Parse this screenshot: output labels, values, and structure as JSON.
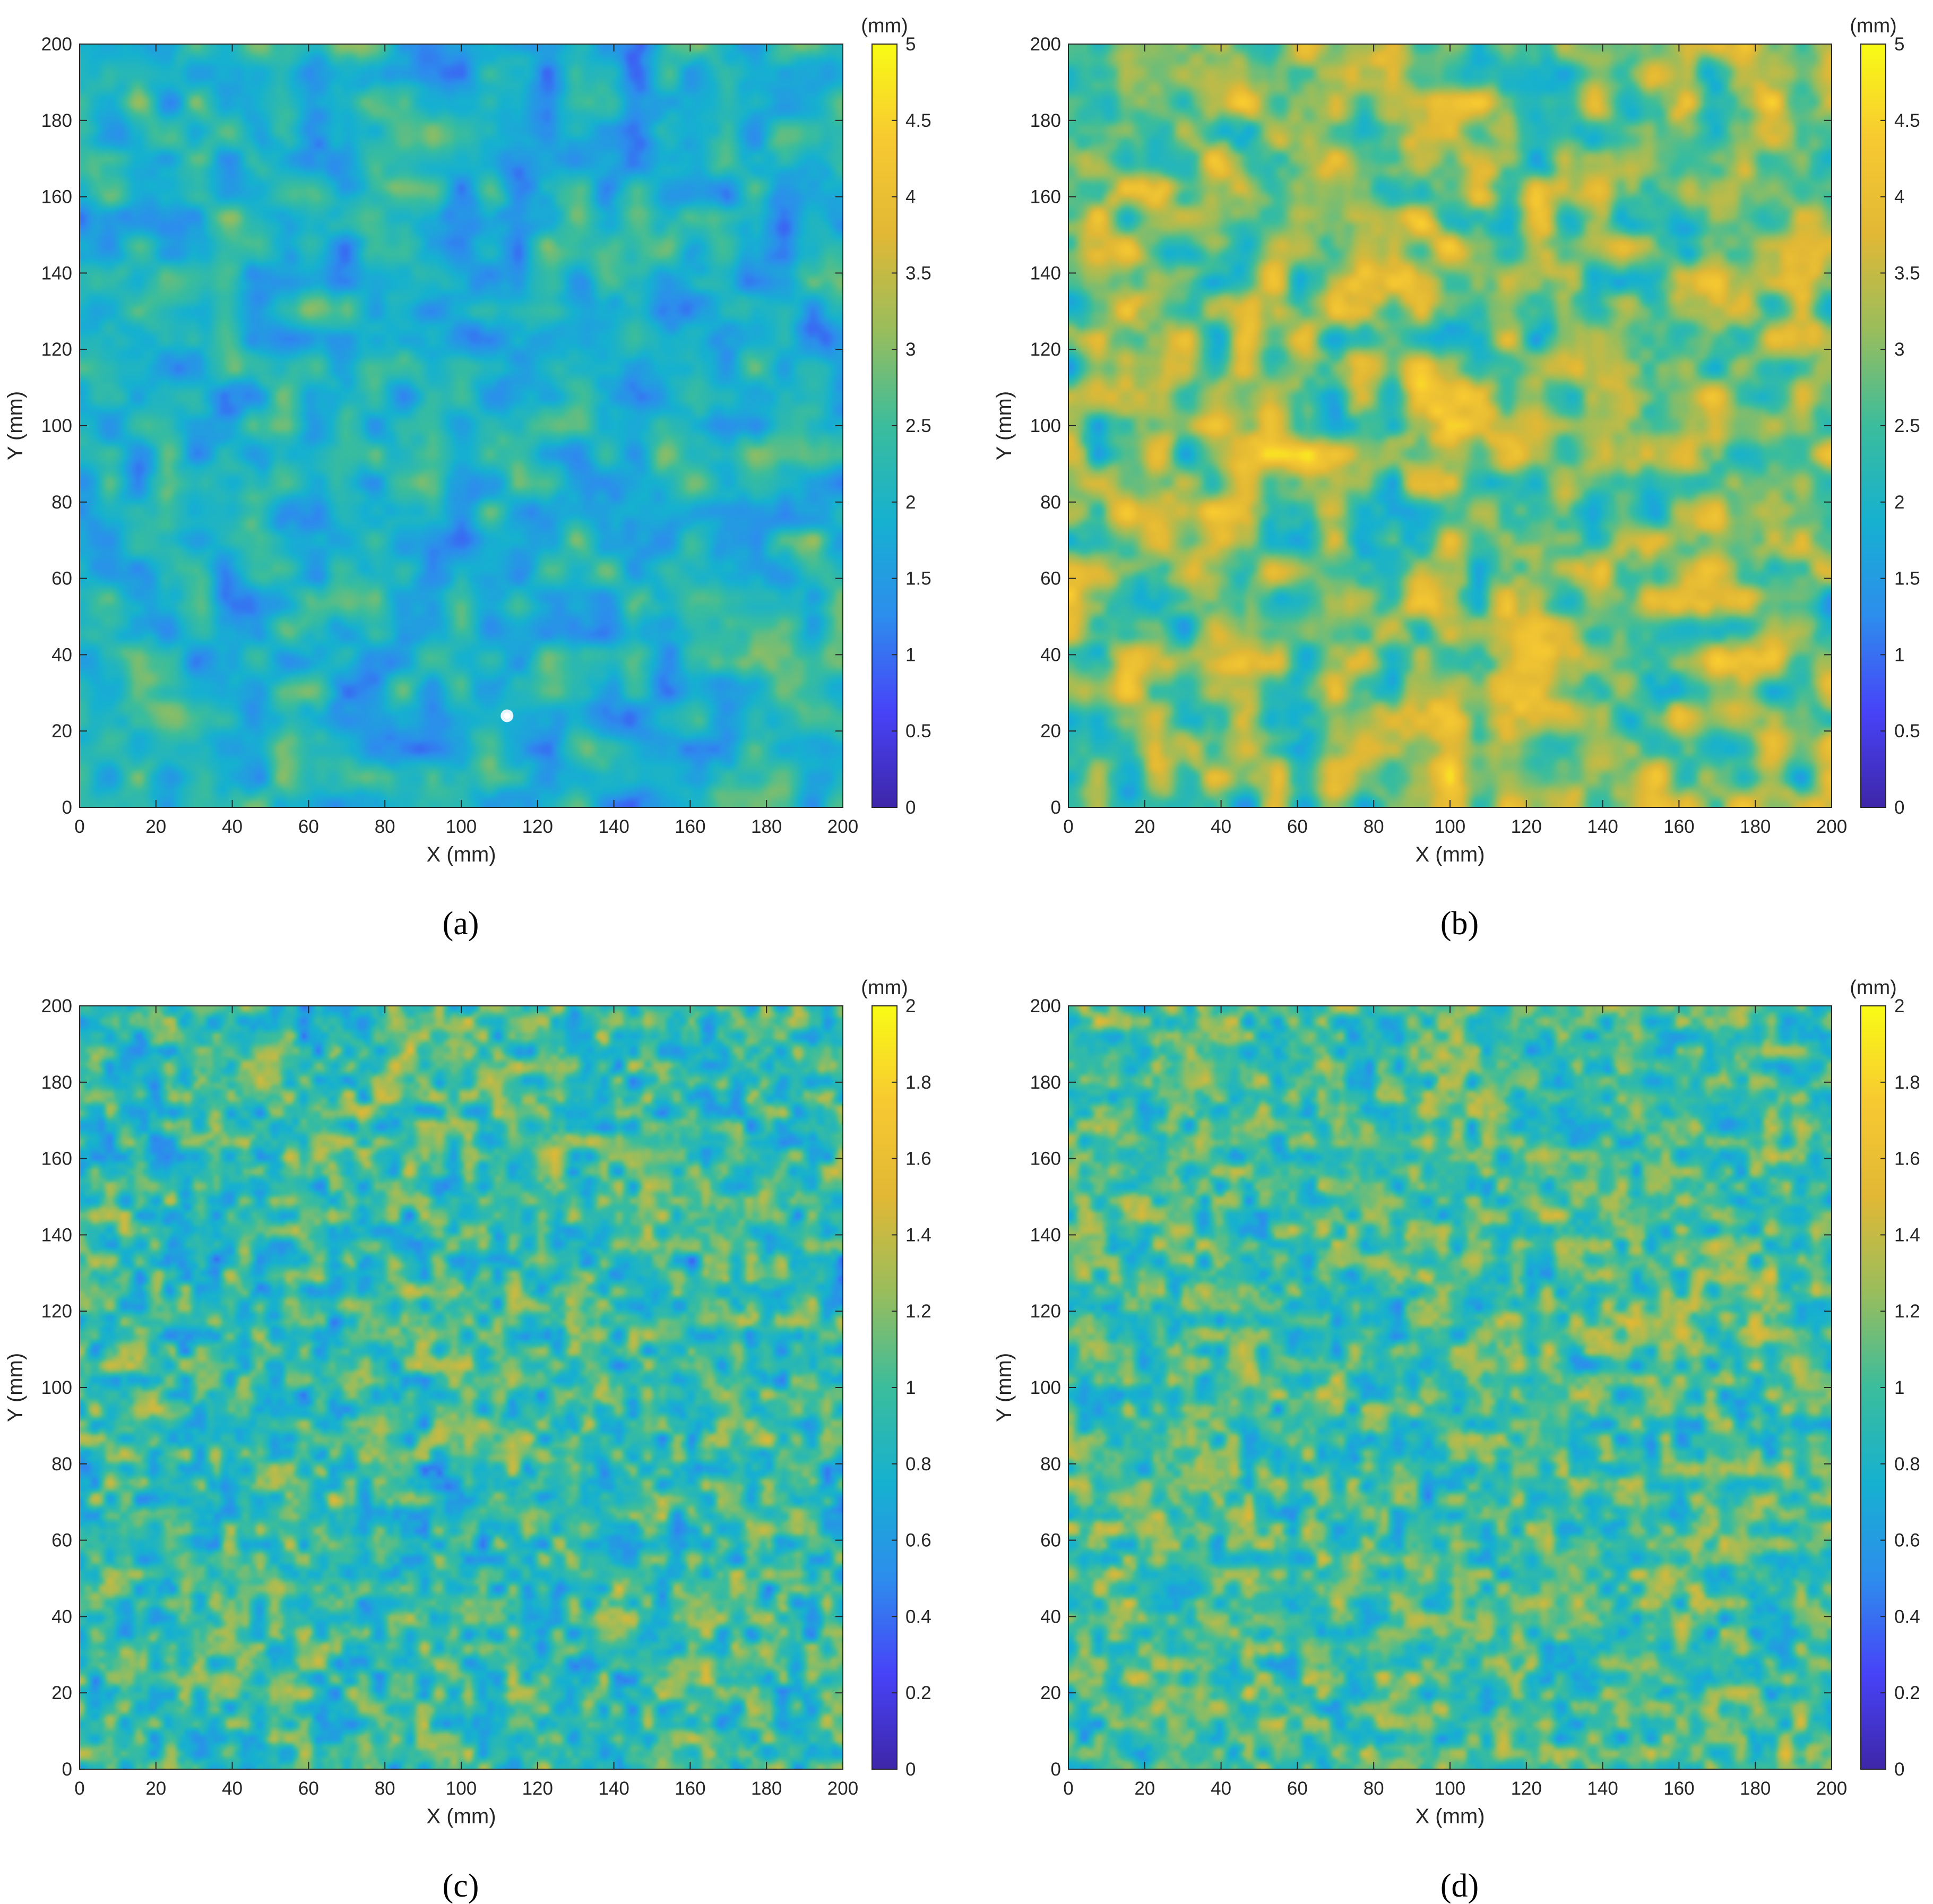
{
  "colormap": [
    "#3e26a8",
    "#4743f8",
    "#2d8ded",
    "#16b1d0",
    "#3bbd9c",
    "#99bd5c",
    "#e1b835",
    "#f7c931",
    "#f9fb15"
  ],
  "chart_data": [
    {
      "type": "heatmap",
      "panel_label": "(a)",
      "xlabel": "X (mm)",
      "ylabel": "Y (mm)",
      "xlim": [
        0,
        200
      ],
      "ylim": [
        0,
        200
      ],
      "xticks": [
        "0",
        "20",
        "40",
        "60",
        "80",
        "100",
        "120",
        "140",
        "160",
        "180",
        "200"
      ],
      "yticks": [
        "0",
        "20",
        "40",
        "60",
        "80",
        "100",
        "120",
        "140",
        "160",
        "180",
        "200"
      ],
      "colorbar": {
        "unit": "(mm)",
        "range": [
          0,
          5
        ],
        "ticks": [
          "0",
          "0.5",
          "1",
          "1.5",
          "2",
          "2.5",
          "3",
          "3.5",
          "4",
          "4.5",
          "5"
        ]
      },
      "field": {
        "mean": 2.0,
        "amplitude": 0.9,
        "feature_size_mm": 8,
        "seed": 11
      },
      "annotation": {
        "type": "white-spot",
        "x": 112,
        "y": 24
      }
    },
    {
      "type": "heatmap",
      "panel_label": "(b)",
      "xlabel": "X (mm)",
      "ylabel": "Y (mm)",
      "xlim": [
        0,
        200
      ],
      "ylim": [
        0,
        200
      ],
      "xticks": [
        "0",
        "20",
        "40",
        "60",
        "80",
        "100",
        "120",
        "140",
        "160",
        "180",
        "200"
      ],
      "yticks": [
        "0",
        "20",
        "40",
        "60",
        "80",
        "100",
        "120",
        "140",
        "160",
        "180",
        "200"
      ],
      "colorbar": {
        "unit": "(mm)",
        "range": [
          0,
          5
        ],
        "ticks": [
          "0",
          "0.5",
          "1",
          "1.5",
          "2",
          "2.5",
          "3",
          "3.5",
          "4",
          "4.5",
          "5"
        ]
      },
      "field": {
        "mean": 3.0,
        "amplitude": 1.3,
        "feature_size_mm": 8,
        "seed": 29
      }
    },
    {
      "type": "heatmap",
      "panel_label": "(c)",
      "xlabel": "X (mm)",
      "ylabel": "Y (mm)",
      "xlim": [
        0,
        200
      ],
      "ylim": [
        0,
        200
      ],
      "xticks": [
        "0",
        "20",
        "40",
        "60",
        "80",
        "100",
        "120",
        "140",
        "160",
        "180",
        "200"
      ],
      "yticks": [
        "0",
        "20",
        "40",
        "60",
        "80",
        "100",
        "120",
        "140",
        "160",
        "180",
        "200"
      ],
      "colorbar": {
        "unit": "(mm)",
        "range": [
          0,
          2
        ],
        "ticks": [
          "0",
          "0.2",
          "0.4",
          "0.6",
          "0.8",
          "1",
          "1.2",
          "1.4",
          "1.6",
          "1.8",
          "2"
        ]
      },
      "field": {
        "mean": 0.95,
        "amplitude": 0.42,
        "feature_size_mm": 4,
        "seed": 47
      }
    },
    {
      "type": "heatmap",
      "panel_label": "(d)",
      "xlabel": "X (mm)",
      "ylabel": "Y (mm)",
      "xlim": [
        0,
        200
      ],
      "ylim": [
        0,
        200
      ],
      "xticks": [
        "0",
        "20",
        "40",
        "60",
        "80",
        "100",
        "120",
        "140",
        "160",
        "180",
        "200"
      ],
      "yticks": [
        "0",
        "20",
        "40",
        "60",
        "80",
        "100",
        "120",
        "140",
        "160",
        "180",
        "200"
      ],
      "colorbar": {
        "unit": "(mm)",
        "range": [
          0,
          2
        ],
        "ticks": [
          "0",
          "0.2",
          "0.4",
          "0.6",
          "0.8",
          "1",
          "1.2",
          "1.4",
          "1.6",
          "1.8",
          "2"
        ]
      },
      "field": {
        "mean": 1.0,
        "amplitude": 0.4,
        "feature_size_mm": 4,
        "seed": 83
      }
    }
  ]
}
